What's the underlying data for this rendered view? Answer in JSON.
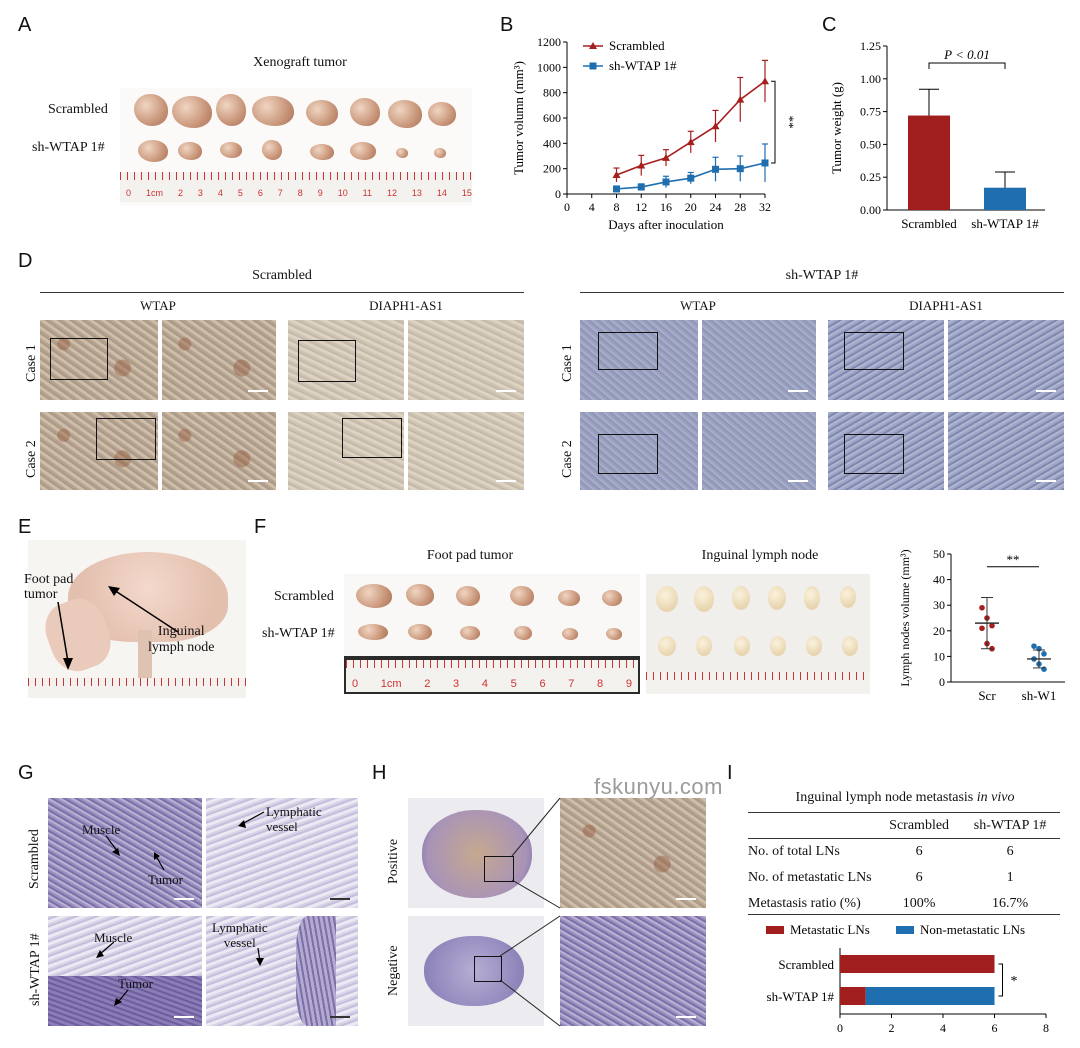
{
  "panels": {
    "A": {
      "label": "A",
      "title": "Xenograft tumor",
      "row1": "Scrambled",
      "row2": "sh-WTAP 1#",
      "ruler_ticks": [
        "0",
        "1cm",
        "2",
        "3",
        "4",
        "5",
        "6",
        "7",
        "8",
        "9",
        "10",
        "11",
        "12",
        "13",
        "14",
        "15"
      ]
    },
    "B": {
      "label": "B",
      "sig": "**"
    },
    "C": {
      "label": "C",
      "pvalue": "P < 0.01"
    },
    "D": {
      "label": "D",
      "group1": "Scrambled",
      "group2": "sh-WTAP 1#",
      "col_wtap": "WTAP",
      "col_diaph": "DIAPH1-AS1",
      "case1": "Case 1",
      "case2": "Case 2"
    },
    "E": {
      "label": "E",
      "foot_pad": "Foot pad\ntumor",
      "lymph": "Inguinal\nlymph node"
    },
    "F": {
      "label": "F",
      "foot_title": "Foot pad tumor",
      "lymph_title": "Inguinal lymph node",
      "row1": "Scrambled",
      "row2": "sh-WTAP 1#",
      "ruler_ticks": [
        "0",
        "1cm",
        "2",
        "3",
        "4",
        "5",
        "6",
        "7",
        "8",
        "9"
      ],
      "sig": "**"
    },
    "G": {
      "label": "G",
      "row1": "Scrambled",
      "row2": "sh-WTAP 1#",
      "muscle": "Muscle",
      "tumor": "Tumor",
      "vessel": "Lymphatic\nvessel"
    },
    "H": {
      "label": "H",
      "positive": "Positive",
      "negative": "Negative"
    },
    "I": {
      "label": "I",
      "table_title": "Inguinal lymph node metastasis",
      "table_title_italic": "in vivo",
      "col1": "Scrambled",
      "col2": "sh-WTAP 1#",
      "rows": [
        {
          "name": "No. of total LNs",
          "v1": "6",
          "v2": "6"
        },
        {
          "name": "No. of metastatic LNs",
          "v1": "6",
          "v2": "1"
        },
        {
          "name": "Metastasis ratio (%)",
          "v1": "100%",
          "v2": "16.7%"
        }
      ],
      "sig": "*"
    }
  },
  "watermark": "fskunyu.com",
  "colors": {
    "red": "#a01e1e",
    "blue": "#1f6fb0",
    "dark_red": "#a61e1e"
  },
  "chart_data": [
    {
      "id": "B",
      "type": "line",
      "xlabel": "Days after inoculation",
      "ylabel": "Tumor volumn (mm³)",
      "xlim": [
        0,
        32
      ],
      "ylim": [
        0,
        1200
      ],
      "xticks": [
        0,
        4,
        8,
        12,
        16,
        20,
        24,
        28,
        32
      ],
      "yticks": [
        0,
        200,
        400,
        600,
        800,
        1000,
        1200
      ],
      "x": [
        8,
        12,
        16,
        20,
        24,
        28,
        32
      ],
      "series": [
        {
          "name": "Scrambled",
          "values": [
            150,
            225,
            285,
            410,
            535,
            745,
            890
          ],
          "err": [
            55,
            80,
            65,
            85,
            125,
            175,
            165
          ],
          "color": "#a61e1e",
          "marker": "triangle"
        },
        {
          "name": "sh-WTAP 1#",
          "values": [
            40,
            55,
            95,
            125,
            195,
            200,
            245
          ],
          "err": [
            20,
            25,
            45,
            45,
            95,
            100,
            150
          ],
          "color": "#1f6fb0",
          "marker": "square"
        }
      ],
      "legend": "top-left"
    },
    {
      "id": "C",
      "type": "bar",
      "ylabel": "Tumor weight (g)",
      "ylim": [
        0,
        1.25
      ],
      "yticks": [
        "0.00",
        "0.25",
        "0.50",
        "0.75",
        "1.00",
        "1.25"
      ],
      "categories": [
        "Scrambled",
        "sh-WTAP 1#"
      ],
      "values": [
        0.72,
        0.17
      ],
      "err": [
        0.2,
        0.12
      ],
      "colors": [
        "#a01e1e",
        "#1f6fb0"
      ]
    },
    {
      "id": "F",
      "type": "scatter",
      "ylabel": "Lymph nodes volume (mm³)",
      "ylim": [
        0,
        50
      ],
      "yticks": [
        0,
        10,
        20,
        30,
        40,
        50
      ],
      "categories": [
        "Scr",
        "sh-W1"
      ],
      "points": [
        {
          "group": "Scr",
          "values": [
            29,
            25,
            22,
            21,
            15,
            13
          ]
        },
        {
          "group": "sh-W1",
          "values": [
            14,
            13,
            11,
            9,
            7,
            5
          ]
        }
      ],
      "mean": [
        23,
        9
      ],
      "sd": [
        10,
        3.5
      ],
      "colors": [
        "#a61e1e",
        "#1f6fb0"
      ]
    },
    {
      "id": "I",
      "type": "bar",
      "orientation": "horizontal",
      "stacked": true,
      "xlim": [
        0,
        8
      ],
      "xticks": [
        0,
        2,
        4,
        6,
        8
      ],
      "categories": [
        "Scrambled",
        "sh-WTAP 1#"
      ],
      "series": [
        {
          "name": "Metastatic LNs",
          "values": [
            6,
            1
          ],
          "color": "#a01e1e"
        },
        {
          "name": "Non-metastatic LNs",
          "values": [
            0,
            5
          ],
          "color": "#1f6fb0"
        }
      ],
      "legend": "top"
    }
  ]
}
